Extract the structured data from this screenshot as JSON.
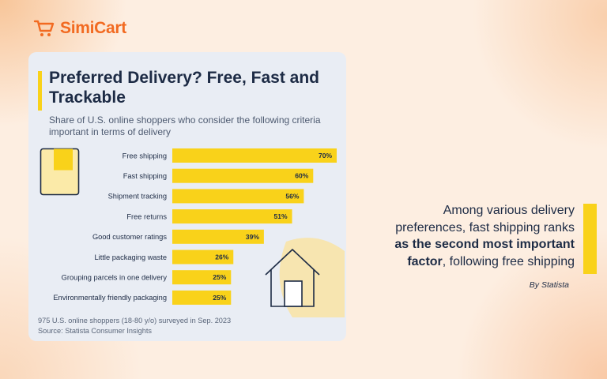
{
  "brand": {
    "name": "SimiCart",
    "accent": "#f26a21"
  },
  "colors": {
    "bar": "#f9d21a",
    "card_bg": "#e9edf4",
    "text": "#1d2b45"
  },
  "chart_data": {
    "type": "bar",
    "orientation": "horizontal",
    "title": "Preferred Delivery? Free, Fast and Trackable",
    "subtitle": "Share of U.S. online shoppers who consider the following criteria important in terms of delivery",
    "categories": [
      "Free shipping",
      "Fast shipping",
      "Shipment tracking",
      "Free returns",
      "Good customer ratings",
      "Little packaging waste",
      "Grouping parcels in one delivery",
      "Environmentally friendly packaging"
    ],
    "values": [
      70,
      60,
      56,
      51,
      39,
      26,
      25,
      25
    ],
    "value_labels": [
      "70%",
      "60%",
      "56%",
      "51%",
      "39%",
      "26%",
      "25%",
      "25%"
    ],
    "unit": "%",
    "xlim": [
      0,
      70
    ],
    "grid": false,
    "footnote": "975 U.S. online shoppers (18-80 y/o) surveyed in Sep. 2023",
    "source": "Source: Statista Consumer Insights"
  },
  "side_note": {
    "line1": "Among various delivery",
    "line2": "preferences, fast shipping ranks",
    "line3": "as the second most important",
    "line4_bold": "factor",
    "line4_rest": ", following free shipping",
    "byline": "By Statista"
  }
}
